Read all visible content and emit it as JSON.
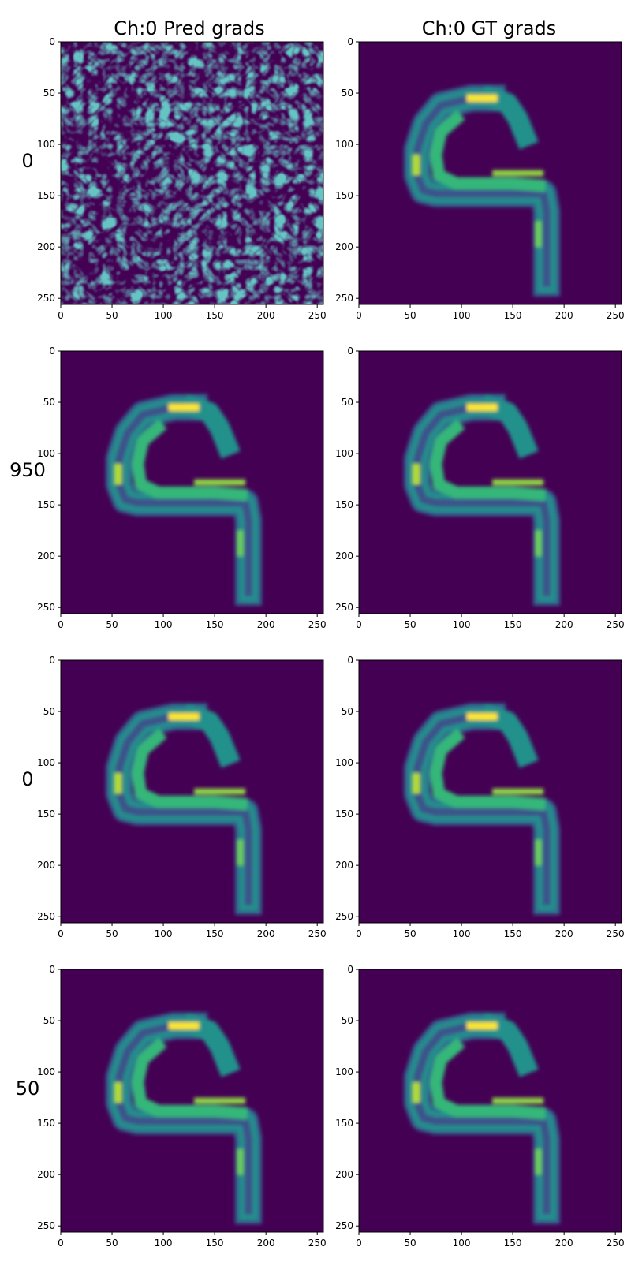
{
  "figure": {
    "column_titles": [
      "Ch:0 Pred grads",
      "Ch:0 GT grads"
    ],
    "row_labels": [
      "0",
      "950",
      "0",
      "50"
    ]
  },
  "chart_data": {
    "type": "heatmap",
    "colormap": "viridis",
    "background_color": "#440154",
    "image_size": [
      256,
      256
    ],
    "xlim": [
      0,
      256
    ],
    "ylim": [
      256,
      0
    ],
    "x_ticks": [
      0,
      50,
      100,
      150,
      200,
      250
    ],
    "y_ticks": [
      0,
      50,
      100,
      150,
      200,
      250
    ],
    "x_tick_labels": [
      "0",
      "50",
      "100",
      "150",
      "200",
      "250"
    ],
    "y_tick_labels": [
      "0",
      "50",
      "100",
      "150",
      "200",
      "250"
    ],
    "panels": [
      {
        "row": 0,
        "col": 0,
        "content": "noise"
      },
      {
        "row": 0,
        "col": 1,
        "content": "digit-9-gradient"
      },
      {
        "row": 1,
        "col": 0,
        "content": "digit-9-gradient"
      },
      {
        "row": 1,
        "col": 1,
        "content": "digit-9-gradient"
      },
      {
        "row": 2,
        "col": 0,
        "content": "digit-9-gradient"
      },
      {
        "row": 2,
        "col": 1,
        "content": "digit-9-gradient"
      },
      {
        "row": 3,
        "col": 0,
        "content": "digit-9-gradient"
      },
      {
        "row": 3,
        "col": 1,
        "content": "digit-9-gradient"
      }
    ],
    "glyph_path": [
      [
        130,
        55
      ],
      [
        110,
        55
      ],
      [
        80,
        62
      ],
      [
        65,
        80
      ],
      [
        57,
        105
      ],
      [
        57,
        130
      ],
      [
        63,
        145
      ],
      [
        75,
        148
      ],
      [
        180,
        148
      ],
      [
        183,
        165
      ],
      [
        183,
        235
      ]
    ],
    "glyph_tail": [
      [
        130,
        55
      ],
      [
        145,
        60
      ],
      [
        155,
        75
      ],
      [
        162,
        92
      ]
    ],
    "glyph_inner_loop": [
      [
        95,
        75
      ],
      [
        80,
        88
      ],
      [
        75,
        110
      ],
      [
        78,
        130
      ],
      [
        95,
        138
      ],
      [
        150,
        138
      ],
      [
        176,
        140
      ]
    ]
  }
}
